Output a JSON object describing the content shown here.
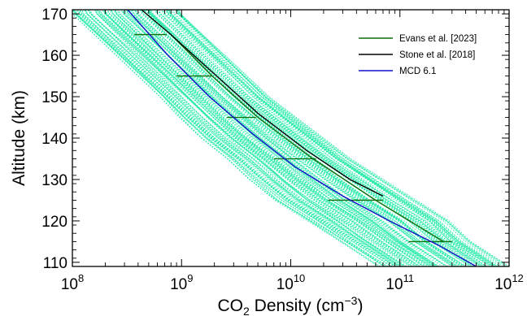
{
  "chart_data": {
    "type": "line",
    "xlabel": {
      "base": "CO",
      "sub": "2",
      "rest": " Density (cm",
      "sup": "−3",
      "close": ")"
    },
    "ylabel": "Altitude (km)",
    "x_scale": "log",
    "xlim": [
      100000000.0,
      1000000000000.0
    ],
    "ylim": [
      109,
      171
    ],
    "x_ticks": [
      {
        "value": 100000000.0,
        "base": "10",
        "exp": "8"
      },
      {
        "value": 1000000000.0,
        "base": "10",
        "exp": "9"
      },
      {
        "value": 10000000000.0,
        "base": "10",
        "exp": "10"
      },
      {
        "value": 100000000000.0,
        "base": "10",
        "exp": "11"
      },
      {
        "value": 1000000000000.0,
        "base": "10",
        "exp": "12"
      }
    ],
    "y_ticks": [
      110,
      120,
      130,
      140,
      150,
      160,
      170
    ],
    "legend_position": "top-right",
    "colors": {
      "ensemble": "#1de9a6",
      "evans": "#0b6e0b",
      "stone": "#000000",
      "mcd": "#1010c8"
    },
    "ensemble_band": {
      "altitude": [
        109,
        115,
        120,
        125,
        130,
        135,
        140,
        145,
        150,
        155,
        160,
        165,
        170,
        171
      ],
      "log10_low": [
        10.8,
        10.45,
        10.15,
        9.85,
        9.62,
        9.42,
        9.18,
        8.98,
        8.8,
        8.6,
        8.4,
        8.2,
        8.0,
        7.98
      ],
      "log10_high": [
        12.0,
        11.65,
        11.45,
        11.15,
        10.85,
        10.55,
        10.3,
        10.05,
        9.8,
        9.6,
        9.4,
        9.2,
        9.0,
        8.98
      ]
    },
    "series": [
      {
        "name": "Evans et al. [2023]",
        "key": "evans",
        "x": [
          250000000000.0,
          60000000000.0,
          16000000000.0,
          5000000000.0,
          1900000000.0,
          800000000.0
        ],
        "y": [
          115,
          125,
          135,
          145,
          155,
          165
        ],
        "xerr_low": [
          120000000000.0,
          22000000000.0,
          7000000000.0,
          2600000000.0,
          900000000.0,
          370000000.0
        ],
        "xerr_high": [
          300000000000.0,
          70000000000.0,
          17000000000.0,
          4800000000.0,
          1900000000.0,
          730000000.0
        ]
      },
      {
        "name": "Stone et al. [2018]",
        "key": "stone",
        "x": [
          70000000000.0,
          35000000000.0,
          14000000000.0,
          5000000000.0,
          1900000000.0,
          800000000.0,
          430000000.0
        ],
        "y": [
          126,
          130,
          137,
          146,
          156,
          165,
          171
        ]
      },
      {
        "name": "MCD 6.1",
        "key": "mcd",
        "x": [
          500000000000.0,
          230000000000.0,
          80000000000.0,
          30000000000.0,
          11000000000.0,
          4500000000.0,
          1800000000.0,
          750000000.0,
          320000000.0
        ],
        "y": [
          109,
          114,
          120,
          126,
          133,
          141,
          150,
          160,
          171
        ]
      }
    ]
  }
}
